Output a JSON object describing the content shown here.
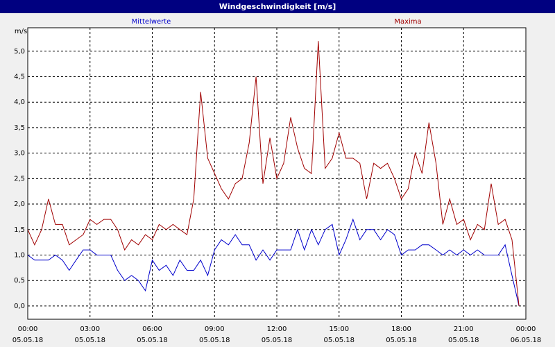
{
  "chart_data": {
    "type": "line",
    "title": "Windgeschwindigkeit [m/s]",
    "y_unit": "m/s",
    "x": [
      0,
      0.33,
      0.67,
      1,
      1.33,
      1.67,
      2,
      2.33,
      2.67,
      3,
      3.33,
      3.67,
      4,
      4.33,
      4.67,
      5,
      5.33,
      5.67,
      6,
      6.33,
      6.67,
      7,
      7.33,
      7.67,
      8,
      8.33,
      8.67,
      9,
      9.33,
      9.67,
      10,
      10.33,
      10.67,
      11,
      11.33,
      11.67,
      12,
      12.33,
      12.67,
      13,
      13.33,
      13.67,
      14,
      14.33,
      14.67,
      15,
      15.33,
      15.67,
      16,
      16.33,
      16.67,
      17,
      17.33,
      17.67,
      18,
      18.33,
      18.67,
      19,
      19.33,
      19.67,
      20,
      20.33,
      20.67,
      21,
      21.33,
      21.67,
      22,
      22.33,
      22.67,
      23,
      23.33,
      23.67
    ],
    "series": [
      {
        "name": "Mittelwerte",
        "color": "#0000cc",
        "values": [
          1.0,
          0.9,
          0.9,
          0.9,
          1.0,
          0.9,
          0.7,
          0.9,
          1.1,
          1.1,
          1.0,
          1.0,
          1.0,
          0.7,
          0.5,
          0.6,
          0.5,
          0.3,
          0.9,
          0.7,
          0.8,
          0.6,
          0.9,
          0.7,
          0.7,
          0.9,
          0.6,
          1.1,
          1.3,
          1.2,
          1.4,
          1.2,
          1.2,
          0.9,
          1.1,
          0.9,
          1.1,
          1.1,
          1.1,
          1.5,
          1.1,
          1.5,
          1.2,
          1.5,
          1.6,
          1.0,
          1.3,
          1.7,
          1.3,
          1.5,
          1.5,
          1.3,
          1.5,
          1.4,
          1.0,
          1.1,
          1.1,
          1.2,
          1.2,
          1.1,
          1.0,
          1.1,
          1.0,
          1.1,
          1.0,
          1.1,
          1.0,
          1.0,
          1.0,
          1.2,
          0.6,
          0.0
        ]
      },
      {
        "name": "Maxima",
        "color": "#a00000",
        "values": [
          1.5,
          1.2,
          1.5,
          2.1,
          1.6,
          1.6,
          1.2,
          1.3,
          1.4,
          1.7,
          1.6,
          1.7,
          1.7,
          1.5,
          1.1,
          1.3,
          1.2,
          1.4,
          1.3,
          1.6,
          1.5,
          1.6,
          1.5,
          1.4,
          2.1,
          4.2,
          2.9,
          2.6,
          2.3,
          2.1,
          2.4,
          2.5,
          3.2,
          4.5,
          2.4,
          3.3,
          2.5,
          2.8,
          3.7,
          3.1,
          2.7,
          2.6,
          5.2,
          2.7,
          2.9,
          3.4,
          2.9,
          2.9,
          2.8,
          2.1,
          2.8,
          2.7,
          2.8,
          2.5,
          2.1,
          2.3,
          3.0,
          2.6,
          3.6,
          2.8,
          1.6,
          2.1,
          1.6,
          1.7,
          1.3,
          1.6,
          1.5,
          2.4,
          1.6,
          1.7,
          1.3,
          0.0
        ]
      }
    ],
    "xlim": [
      0,
      24
    ],
    "xticks": [
      {
        "value": 0,
        "label": "00:00"
      },
      {
        "value": 3,
        "label": "03:00"
      },
      {
        "value": 6,
        "label": "06:00"
      },
      {
        "value": 9,
        "label": "09:00"
      },
      {
        "value": 12,
        "label": "12:00"
      },
      {
        "value": 15,
        "label": "15:00"
      },
      {
        "value": 18,
        "label": "18:00"
      },
      {
        "value": 21,
        "label": "21:00"
      },
      {
        "value": 24,
        "label": "00:00"
      }
    ],
    "xtick_dates": [
      "05.05.18",
      "05.05.18",
      "05.05.18",
      "05.05.18",
      "05.05.18",
      "05.05.18",
      "05.05.18",
      "05.05.18",
      "06.05.18"
    ],
    "ylim": [
      -0.26,
      5.46
    ],
    "yticks": [
      {
        "value": 0,
        "label": "0,0"
      },
      {
        "value": 0.5,
        "label": "0,5"
      },
      {
        "value": 1,
        "label": "1,0"
      },
      {
        "value": 1.5,
        "label": "1,5"
      },
      {
        "value": 2,
        "label": "2,0"
      },
      {
        "value": 2.5,
        "label": "2,5"
      },
      {
        "value": 3,
        "label": "3,0"
      },
      {
        "value": 3.5,
        "label": "3,5"
      },
      {
        "value": 4,
        "label": "4,0"
      },
      {
        "value": 4.5,
        "label": "4,5"
      },
      {
        "value": 5,
        "label": "5,0"
      }
    ],
    "grid": true
  }
}
